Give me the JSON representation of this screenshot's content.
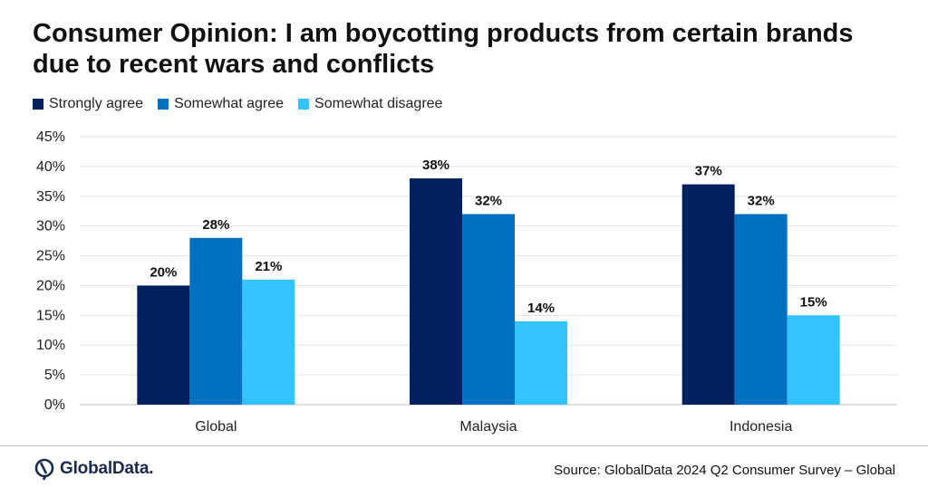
{
  "title": "Consumer Opinion: I am boycotting products from certain brands due to recent wars and conflicts",
  "source": "Source: GlobalData 2024 Q2 Consumer Survey – Global",
  "logo_text": "GlobalData.",
  "colors": {
    "strongly": "#002060",
    "somewhat": "#0070C0",
    "disagree": "#33C3FF"
  },
  "chart_data": {
    "type": "bar",
    "categories": [
      "Global",
      "Malaysia",
      "Indonesia"
    ],
    "series": [
      {
        "name": "Strongly agree",
        "values": [
          20,
          38,
          37
        ],
        "labels": [
          "20%",
          "38%",
          "37%"
        ]
      },
      {
        "name": "Somewhat agree",
        "values": [
          28,
          32,
          32
        ],
        "labels": [
          "28%",
          "32%",
          "32%"
        ]
      },
      {
        "name": "Somewhat disagree",
        "values": [
          21,
          14,
          15
        ],
        "labels": [
          "21%",
          "14%",
          "15%"
        ]
      }
    ],
    "ylim": [
      0,
      45
    ],
    "yticks": [
      "0%",
      "5%",
      "10%",
      "15%",
      "20%",
      "25%",
      "30%",
      "35%",
      "40%",
      "45%"
    ],
    "grid": true,
    "legend": "top-left"
  }
}
